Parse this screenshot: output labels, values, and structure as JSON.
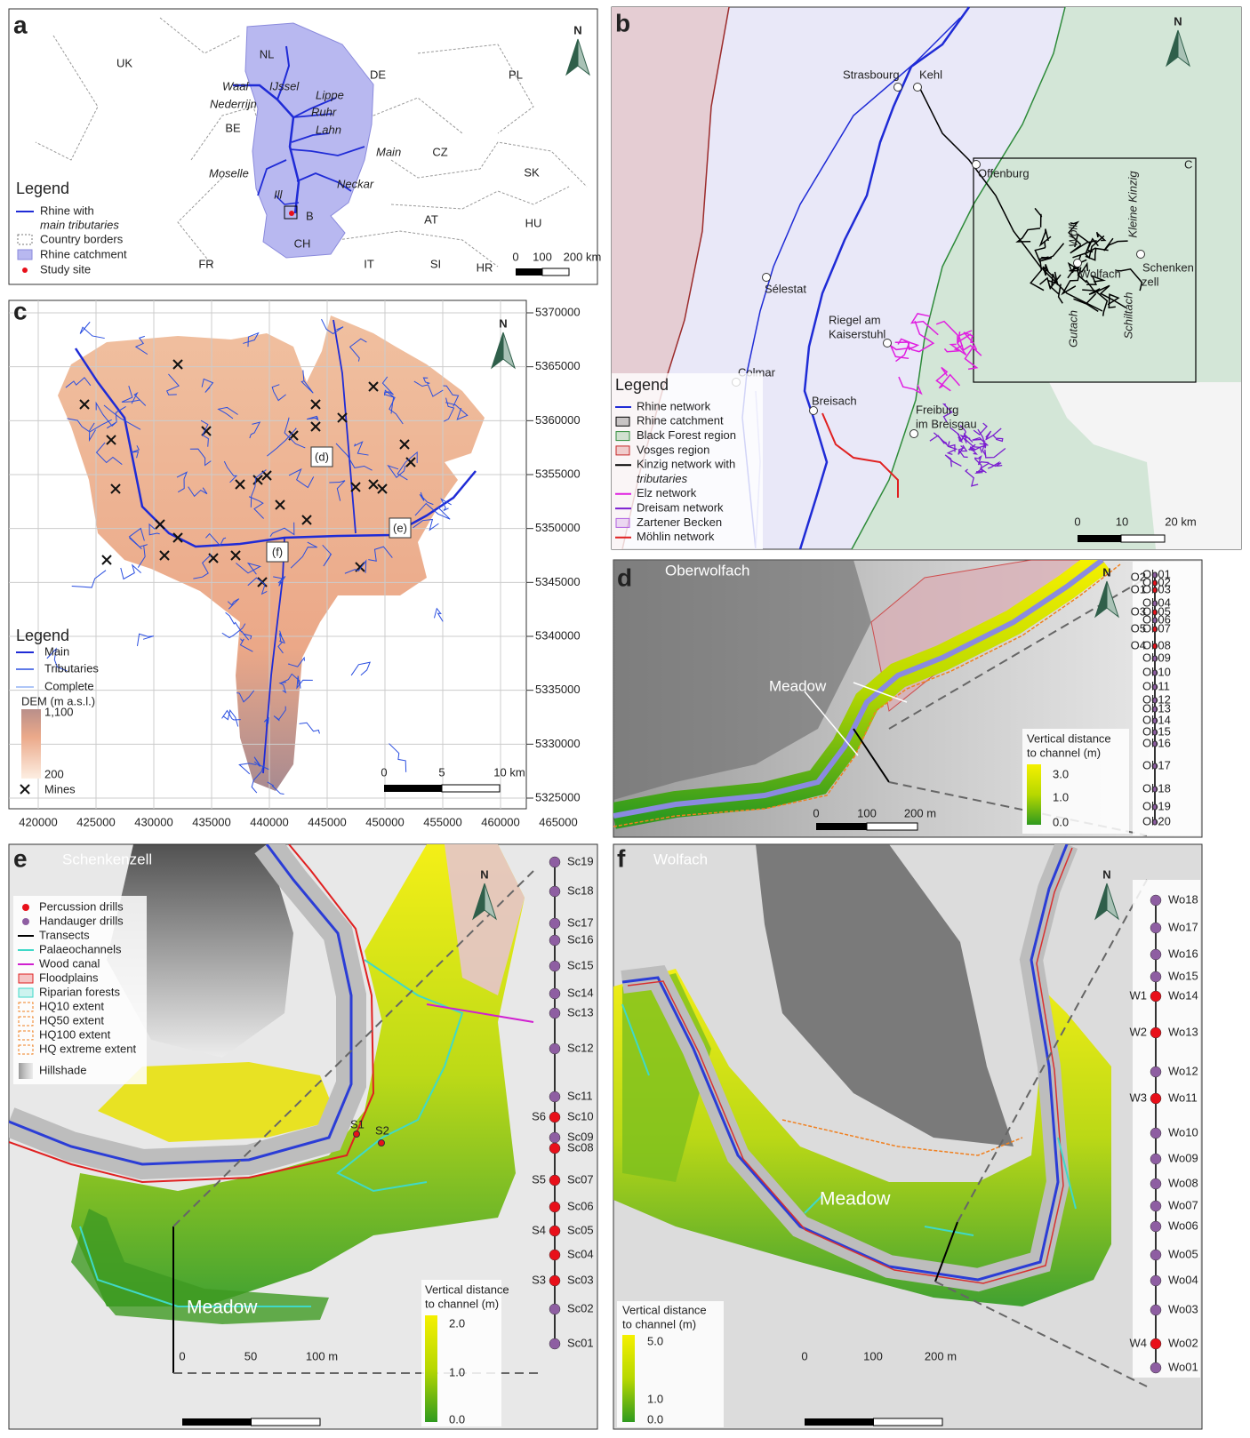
{
  "panels": {
    "a": {
      "letter": "a",
      "north": "N",
      "countries": [
        "UK",
        "NL",
        "DE",
        "PL",
        "BE",
        "CZ",
        "SK",
        "AT",
        "HU",
        "FR",
        "IT",
        "SI",
        "HR",
        "CH"
      ],
      "rivers": [
        "Waal",
        "IJssel",
        "Lippe",
        "Nederrijn",
        "Ruhr",
        "Lahn",
        "Main",
        "Moselle",
        "Neckar",
        "Ill"
      ],
      "box_label": "B",
      "legend": {
        "title": "Legend",
        "items": [
          [
            "Rhine with",
            "main tributaries"
          ],
          [
            "Country borders"
          ],
          [
            "Rhine catchment"
          ],
          [
            "Study site"
          ]
        ]
      },
      "scale": [
        "0",
        "100",
        "200 km"
      ]
    },
    "b": {
      "letter": "b",
      "north": "N",
      "places": [
        [
          "Strasbourg"
        ],
        [
          "Kehl"
        ],
        [
          "Offenburg"
        ],
        [
          "Wolfach"
        ],
        [
          "Schenken",
          "zell"
        ],
        [
          "Sélestat"
        ],
        [
          "Riegel am",
          "Kaiserstuhl"
        ],
        [
          "Colmar"
        ],
        [
          "Breisach"
        ],
        [
          "Freiburg",
          "im Breisgau"
        ]
      ],
      "rivers": [
        "Wolf",
        "Kleine Kinzig",
        "Gutach",
        "Schiltach"
      ],
      "box_label": "C",
      "legend": {
        "title": "Legend",
        "items": [
          [
            "Rhine network"
          ],
          [
            "Rhine catchment"
          ],
          [
            "Black Forest region"
          ],
          [
            "Vosges region"
          ],
          [
            "Kinzig network with",
            "tributaries"
          ],
          [
            "Elz network"
          ],
          [
            "Dreisam network"
          ],
          [
            "Zartener Becken"
          ],
          [
            "Möhlin network"
          ]
        ],
        "colors": [
          "#1f2bd6",
          "#000000",
          "#2e8b3a",
          "#c62828",
          "#000000",
          "#e020e0",
          "#7b1fd0",
          "#b060e0",
          "#e02020"
        ],
        "symbols": [
          "line",
          "box",
          "box",
          "box",
          "line",
          "line",
          "line",
          "box",
          "line"
        ]
      },
      "scale": [
        "0",
        "10",
        "20 km"
      ]
    },
    "c": {
      "letter": "c",
      "north": "N",
      "sites": [
        "(d)",
        "(e)",
        "(f)"
      ],
      "legend": {
        "title": "Legend",
        "items": [
          "Main",
          "Tributaries",
          "Complete"
        ],
        "colors": [
          "#1f2bd6",
          "#2a4ee0",
          "#5c8df0"
        ]
      },
      "dem_title": "DEM (m a.s.l.)",
      "dem_labels": [
        "1,100",
        "200"
      ],
      "mines": "Mines",
      "scale": [
        "0",
        "5",
        "10 km"
      ],
      "xticks": [
        420000,
        425000,
        430000,
        435000,
        440000,
        445000,
        450000,
        455000,
        460000,
        465000
      ],
      "yticks": [
        5370000,
        5365000,
        5360000,
        5355000,
        5350000,
        5345000,
        5340000,
        5335000,
        5330000,
        5325000
      ]
    },
    "d": {
      "letter": "d",
      "north": "N",
      "title": "Oberwolfach",
      "meadow": "Meadow",
      "colorbar": {
        "title": [
          "Vertical distance",
          "to channel (m)"
        ],
        "labels": [
          "3.0",
          "1.0",
          "0.0"
        ]
      },
      "scale": [
        "0",
        "100",
        "200 m"
      ],
      "transect": [
        {
          "label": "Ob01",
          "color": "#8e5ea2"
        },
        {
          "label": "Ob02",
          "color": "#e8101a",
          "drill": "O2"
        },
        {
          "label": "Ob03",
          "color": "#e8101a",
          "drill": "O1"
        },
        {
          "label": "Ob04",
          "color": "#8e5ea2"
        },
        {
          "label": "Ob05",
          "color": "#e8101a",
          "drill": "O3"
        },
        {
          "label": "Ob06",
          "color": "#8e5ea2"
        },
        {
          "label": "Ob07",
          "color": "#e8101a",
          "drill": "O5"
        },
        {
          "label": "Ob08",
          "color": "#e8101a",
          "drill": "O4"
        },
        {
          "label": "Ob09",
          "color": "#8e5ea2"
        },
        {
          "label": "Ob10",
          "color": "#8e5ea2"
        },
        {
          "label": "Ob11",
          "color": "#8e5ea2"
        },
        {
          "label": "Ob12",
          "color": "#8e5ea2"
        },
        {
          "label": "Ob13",
          "color": "#8e5ea2"
        },
        {
          "label": "Ob14",
          "color": "#8e5ea2"
        },
        {
          "label": "Ob15",
          "color": "#8e5ea2"
        },
        {
          "label": "Ob16",
          "color": "#8e5ea2"
        },
        {
          "label": "Ob17",
          "color": "#8e5ea2"
        },
        {
          "label": "Ob18",
          "color": "#8e5ea2"
        },
        {
          "label": "Ob19",
          "color": "#8e5ea2"
        },
        {
          "label": "Ob20",
          "color": "#8e5ea2"
        }
      ]
    },
    "e": {
      "letter": "e",
      "north": "N",
      "title": "Schenkenzell",
      "meadow": "Meadow",
      "legend": {
        "items": [
          "Percussion drills",
          "Handauger drills",
          "Transects",
          "Palaeochannels",
          "Wood canal",
          "Floodplains",
          "Riparian forests",
          "HQ10 extent",
          "HQ50 extent",
          "HQ100 extent",
          "HQ extreme extent",
          "Hillshade"
        ],
        "colors": [
          "#e8101a",
          "#8e5ea2",
          "#000000",
          "#3fd9c8",
          "#d020d0",
          "#e02020",
          "#3fd9c8",
          "#f08020",
          "#f08020",
          "#f08020",
          "#f08020",
          "#777777"
        ],
        "symbols": [
          "dot",
          "dot",
          "line",
          "line",
          "line",
          "box",
          "box",
          "dash",
          "dash",
          "dash",
          "dash",
          "ramp"
        ]
      },
      "drills": [
        "S1",
        "S2"
      ],
      "colorbar": {
        "title": [
          "Vertical distance",
          "to channel (m)"
        ],
        "labels": [
          "2.0",
          "1.0",
          "0.0"
        ]
      },
      "scale": [
        "0",
        "50",
        "100 m"
      ],
      "transect": [
        {
          "label": "Sc19",
          "color": "#8e5ea2"
        },
        {
          "label": "Sc18",
          "color": "#8e5ea2"
        },
        {
          "label": "Sc17",
          "color": "#8e5ea2"
        },
        {
          "label": "Sc16",
          "color": "#8e5ea2"
        },
        {
          "label": "Sc15",
          "color": "#8e5ea2"
        },
        {
          "label": "Sc14",
          "color": "#8e5ea2"
        },
        {
          "label": "Sc13",
          "color": "#8e5ea2"
        },
        {
          "label": "Sc12",
          "color": "#8e5ea2"
        },
        {
          "label": "Sc11",
          "color": "#8e5ea2"
        },
        {
          "label": "Sc10",
          "color": "#e8101a",
          "drill": "S6"
        },
        {
          "label": "Sc09",
          "color": "#8e5ea2"
        },
        {
          "label": "Sc08",
          "color": "#e8101a"
        },
        {
          "label": "Sc07",
          "color": "#e8101a",
          "drill": "S5"
        },
        {
          "label": "Sc06",
          "color": "#e8101a"
        },
        {
          "label": "Sc05",
          "color": "#e8101a",
          "drill": "S4"
        },
        {
          "label": "Sc04",
          "color": "#e8101a"
        },
        {
          "label": "Sc03",
          "color": "#e8101a",
          "drill": "S3"
        },
        {
          "label": "Sc02",
          "color": "#8e5ea2"
        },
        {
          "label": "Sc01",
          "color": "#8e5ea2"
        }
      ]
    },
    "f": {
      "letter": "f",
      "north": "N",
      "title": "Wolfach",
      "meadow": "Meadow",
      "colorbar": {
        "title": [
          "Vertical distance",
          "to channel (m)"
        ],
        "labels": [
          "5.0",
          "1.0",
          "0.0"
        ]
      },
      "scale": [
        "0",
        "100",
        "200 m"
      ],
      "transect": [
        {
          "label": "Wo18",
          "color": "#8e5ea2"
        },
        {
          "label": "Wo17",
          "color": "#8e5ea2"
        },
        {
          "label": "Wo16",
          "color": "#8e5ea2"
        },
        {
          "label": "Wo15",
          "color": "#8e5ea2"
        },
        {
          "label": "Wo14",
          "color": "#e8101a",
          "drill": "W1"
        },
        {
          "label": "Wo13",
          "color": "#e8101a",
          "drill": "W2"
        },
        {
          "label": "Wo12",
          "color": "#8e5ea2"
        },
        {
          "label": "Wo11",
          "color": "#e8101a",
          "drill": "W3"
        },
        {
          "label": "Wo10",
          "color": "#8e5ea2"
        },
        {
          "label": "Wo09",
          "color": "#8e5ea2"
        },
        {
          "label": "Wo08",
          "color": "#8e5ea2"
        },
        {
          "label": "Wo07",
          "color": "#8e5ea2"
        },
        {
          "label": "Wo06",
          "color": "#8e5ea2"
        },
        {
          "label": "Wo05",
          "color": "#8e5ea2"
        },
        {
          "label": "Wo04",
          "color": "#8e5ea2"
        },
        {
          "label": "Wo03",
          "color": "#8e5ea2"
        },
        {
          "label": "Wo02",
          "color": "#e8101a",
          "drill": "W4"
        },
        {
          "label": "Wo01",
          "color": "#8e5ea2"
        }
      ]
    }
  }
}
